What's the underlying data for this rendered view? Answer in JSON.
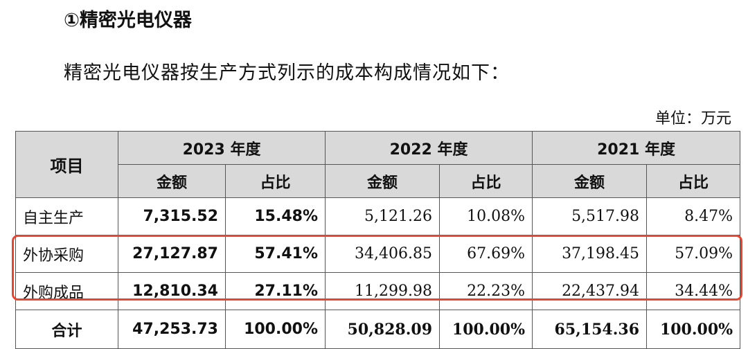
{
  "heading": "①精密光电仪器",
  "paragraph": "精密光电仪器按生产方式列示的成本构成情况如下：",
  "unit": "单位：万元",
  "table": {
    "item_header": "项目",
    "years": [
      "2023 年度",
      "2022 年度",
      "2021 年度"
    ],
    "subheaders": {
      "amount": "金额",
      "ratio": "占比"
    },
    "rows": [
      {
        "label": "自主生产",
        "cells": [
          "7,315.52",
          "15.48%",
          "5,121.26",
          "10.08%",
          "5,517.98",
          "8.47%"
        ]
      },
      {
        "label": "外协采购",
        "cells": [
          "27,127.87",
          "57.41%",
          "34,406.85",
          "67.69%",
          "37,198.45",
          "57.09%"
        ]
      },
      {
        "label": "外购成品",
        "cells": [
          "12,810.34",
          "27.11%",
          "11,299.98",
          "22.23%",
          "22,437.94",
          "34.44%"
        ]
      }
    ],
    "total": {
      "label": "合计",
      "cells": [
        "47,253.73",
        "100.00%",
        "50,828.09",
        "100.00%",
        "65,154.36",
        "100.00%"
      ]
    }
  },
  "colors": {
    "header_bg": "#d9d9d9",
    "highlight_border": "#e8452c"
  }
}
